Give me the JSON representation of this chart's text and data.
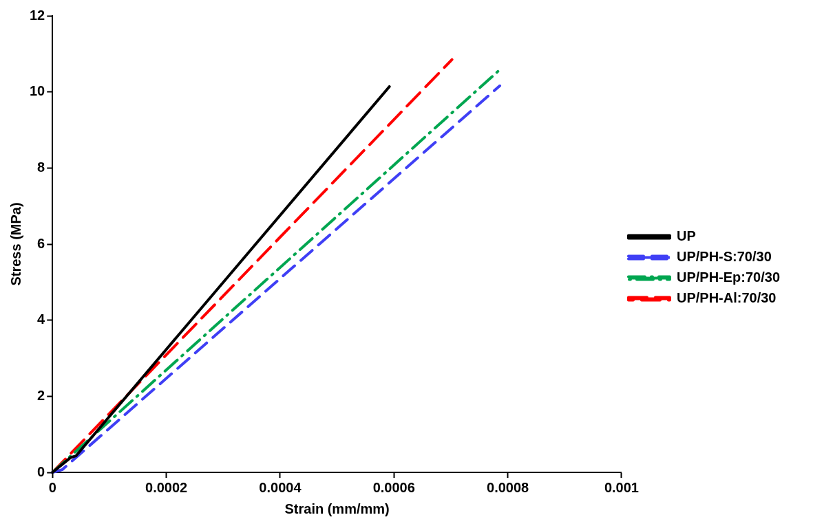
{
  "chart_data": {
    "type": "line",
    "xlabel": "Strain (mm/mm)",
    "ylabel": "Stress (MPa)",
    "xlim": [
      0,
      0.001
    ],
    "xticks": [
      0,
      0.0002,
      0.0004,
      0.0006,
      0.0008,
      0.001
    ],
    "ylim": [
      0,
      12
    ],
    "yticks": [
      0,
      2,
      4,
      6,
      8,
      10,
      12
    ],
    "grid": false,
    "legend": "right",
    "marker": "none",
    "series": [
      {
        "name": "UP",
        "color": "#000000",
        "line_style": "solid",
        "x": [
          0,
          3.2e-05,
          4.1e-05,
          0.000592
        ],
        "values": [
          0,
          0.39,
          0.43,
          10.14
        ]
      },
      {
        "name": "UP/PH-S:70/30",
        "color": "#3f3ff5",
        "line_style": "dashed",
        "x": [
          0,
          1.7e-05,
          0.000786
        ],
        "values": [
          0,
          0.07,
          10.16
        ]
      },
      {
        "name": "UP/PH-Ep:70/30",
        "color": "#00a650",
        "line_style": "dashdot",
        "x": [
          0,
          0.000785
        ],
        "values": [
          0,
          10.57
        ]
      },
      {
        "name": "UP/PH-Al:70/30",
        "color": "#ff0000",
        "line_style": "longdash",
        "x": [
          0,
          0.000702
        ],
        "values": [
          0,
          10.85
        ]
      }
    ]
  }
}
